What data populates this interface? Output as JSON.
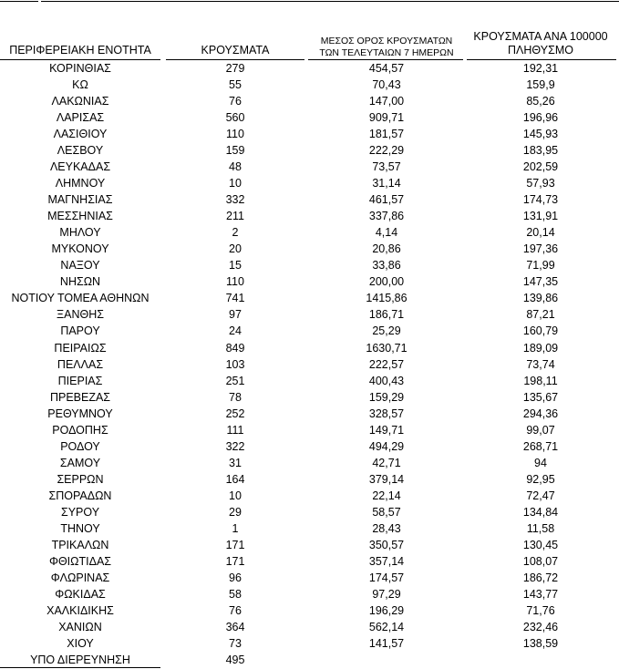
{
  "table": {
    "headers": [
      [
        "ΠΕΡΙΦΕΡΕΙΑΚΗ ΕΝΟΤΗΤΑ"
      ],
      [
        "ΚΡΟΥΣΜΑΤΑ"
      ],
      [
        "ΜΕΣΟΣ ΟΡΟΣ ΚΡΟΥΣΜΑΤΩΝ",
        "ΤΩΝ ΤΕΛΕΥΤΑΙΩΝ 7 ΗΜΕΡΩΝ"
      ],
      [
        "ΚΡΟΥΣΜΑΤΑ ΑΝΑ 100000",
        "ΠΛΗΘΥΣΜΟ"
      ]
    ],
    "rows": [
      [
        "ΚΟΡΙΝΘΙΑΣ",
        "279",
        "454,57",
        "192,31"
      ],
      [
        "ΚΩ",
        "55",
        "70,43",
        "159,9"
      ],
      [
        "ΛΑΚΩΝΙΑΣ",
        "76",
        "147,00",
        "85,26"
      ],
      [
        "ΛΑΡΙΣΑΣ",
        "560",
        "909,71",
        "196,96"
      ],
      [
        "ΛΑΣΙΘΙΟΥ",
        "110",
        "181,57",
        "145,93"
      ],
      [
        "ΛΕΣΒΟΥ",
        "159",
        "222,29",
        "183,95"
      ],
      [
        "ΛΕΥΚΑΔΑΣ",
        "48",
        "73,57",
        "202,59"
      ],
      [
        "ΛΗΜΝΟΥ",
        "10",
        "31,14",
        "57,93"
      ],
      [
        "ΜΑΓΝΗΣΙΑΣ",
        "332",
        "461,57",
        "174,73"
      ],
      [
        "ΜΕΣΣΗΝΙΑΣ",
        "211",
        "337,86",
        "131,91"
      ],
      [
        "ΜΗΛΟΥ",
        "2",
        "4,14",
        "20,14"
      ],
      [
        "ΜΥΚΟΝΟΥ",
        "20",
        "20,86",
        "197,36"
      ],
      [
        "ΝΑΞΟΥ",
        "15",
        "33,86",
        "71,99"
      ],
      [
        "ΝΗΣΩΝ",
        "110",
        "200,00",
        "147,35"
      ],
      [
        "ΝΟΤΙΟΥ ΤΟΜΕΑ ΑΘΗΝΩΝ",
        "741",
        "1415,86",
        "139,86"
      ],
      [
        "ΞΑΝΘΗΣ",
        "97",
        "186,71",
        "87,21"
      ],
      [
        "ΠΑΡΟΥ",
        "24",
        "25,29",
        "160,79"
      ],
      [
        "ΠΕΙΡΑΙΩΣ",
        "849",
        "1630,71",
        "189,09"
      ],
      [
        "ΠΕΛΛΑΣ",
        "103",
        "222,57",
        "73,74"
      ],
      [
        "ΠΙΕΡΙΑΣ",
        "251",
        "400,43",
        "198,11"
      ],
      [
        "ΠΡΕΒΕΖΑΣ",
        "78",
        "159,29",
        "135,67"
      ],
      [
        "ΡΕΘΥΜΝΟΥ",
        "252",
        "328,57",
        "294,36"
      ],
      [
        "ΡΟΔΟΠΗΣ",
        "111",
        "149,71",
        "99,07"
      ],
      [
        "ΡΟΔΟΥ",
        "322",
        "494,29",
        "268,71"
      ],
      [
        "ΣΑΜΟΥ",
        "31",
        "42,71",
        "94"
      ],
      [
        "ΣΕΡΡΩΝ",
        "164",
        "379,14",
        "92,95"
      ],
      [
        "ΣΠΟΡΑΔΩΝ",
        "10",
        "22,14",
        "72,47"
      ],
      [
        "ΣΥΡΟΥ",
        "29",
        "58,57",
        "134,84"
      ],
      [
        "ΤΗΝΟΥ",
        "1",
        "28,43",
        "11,58"
      ],
      [
        "ΤΡΙΚΑΛΩΝ",
        "171",
        "350,57",
        "130,45"
      ],
      [
        "ΦΘΙΩΤΙΔΑΣ",
        "171",
        "357,14",
        "108,07"
      ],
      [
        "ΦΛΩΡΙΝΑΣ",
        "96",
        "174,57",
        "186,72"
      ],
      [
        "ΦΩΚΙΔΑΣ",
        "58",
        "97,29",
        "143,77"
      ],
      [
        "ΧΑΛΚΙΔΙΚΗΣ",
        "76",
        "196,29",
        "71,76"
      ],
      [
        "ΧΑΝΙΩΝ",
        "364",
        "562,14",
        "232,46"
      ],
      [
        "ΧΙΟΥ",
        "73",
        "141,57",
        "138,59"
      ],
      [
        "ΥΠΟ ΔΙΕΡΕΥΝΗΣΗ",
        "495"
      ]
    ]
  }
}
